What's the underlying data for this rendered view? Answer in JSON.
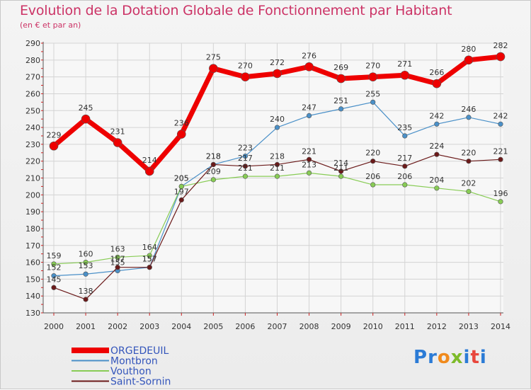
{
  "title": "Evolution de la Dotation Globale de Fonctionnement par Habitant",
  "subtitle": "(en € et par an)",
  "logo": {
    "text": "Proxiti",
    "letter_colors": [
      "#2b7bd6",
      "#2b7bd6",
      "#f08a1c",
      "#7dbb2a",
      "#2b7bd6",
      "#e8463c",
      "#2b7bd6"
    ]
  },
  "chart_data": {
    "type": "line",
    "x": [
      2000,
      2001,
      2002,
      2003,
      2004,
      2005,
      2006,
      2007,
      2008,
      2009,
      2010,
      2011,
      2012,
      2013,
      2014
    ],
    "ylim": [
      130,
      290
    ],
    "yticks": [
      130,
      140,
      150,
      160,
      170,
      180,
      190,
      200,
      210,
      220,
      230,
      240,
      250,
      260,
      270,
      280,
      290
    ],
    "grid": true,
    "legend_position": "bottom-left",
    "series": [
      {
        "name": "Montbron",
        "color": "#4a90c8",
        "values": [
          152,
          153,
          155,
          157,
          205,
          218,
          223,
          240,
          247,
          251,
          255,
          235,
          242,
          246,
          242
        ]
      },
      {
        "name": "Vouthon",
        "color": "#88cc55",
        "values": [
          159,
          160,
          163,
          164,
          205,
          209,
          211,
          211,
          213,
          211,
          206,
          206,
          204,
          202,
          196
        ]
      },
      {
        "name": "Saint-Sornin",
        "color": "#6b1a1a",
        "values": [
          145,
          138,
          157,
          157,
          197,
          218,
          217,
          218,
          221,
          214,
          220,
          217,
          224,
          220,
          221
        ]
      },
      {
        "name": "ORGEDEUIL",
        "color": "#ee0000",
        "values": [
          229,
          245,
          231,
          214,
          236,
          275,
          270,
          272,
          276,
          269,
          270,
          271,
          266,
          280,
          282
        ]
      }
    ],
    "legend_order": [
      "ORGEDEUIL",
      "Montbron",
      "Vouthon",
      "Saint-Sornin"
    ],
    "legend_text_color": "#3355bb"
  }
}
